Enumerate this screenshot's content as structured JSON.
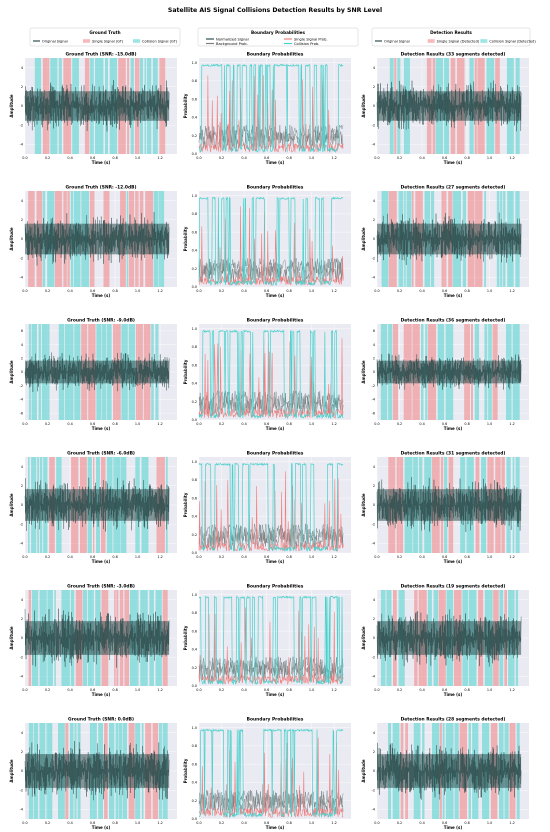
{
  "figure_title": "Satellite AIS Signal Collisions Detection Results by SNR Level",
  "legends": {
    "ground_truth": {
      "title": "Ground Truth",
      "entries": [
        "Original Signal",
        "Single Signal (GT)",
        "Collision Signal (GT)"
      ]
    },
    "boundary": {
      "title": "Boundary Probabilities",
      "entries": [
        "Normalized Signal",
        "Single Signal Prob.",
        "Background Prob.",
        "Collision Prob."
      ]
    },
    "detection": {
      "title": "Detection Results",
      "entries": [
        "Original Signal",
        "Single Signal (Detected)",
        "Collision Signal (Detected)"
      ]
    }
  },
  "colors": {
    "signal": "#2f4f4f",
    "single": "#f08080",
    "collision": "#48d1cc",
    "background_prob": "#808080",
    "panel_bg": "#eaeaf2"
  },
  "chart_data": [
    {
      "row": 0,
      "col": 0,
      "type": "line",
      "title": "Ground Truth (SNR: -15.0dB)",
      "xlabel": "Time (s)",
      "ylabel": "Amplitude",
      "xlim": [
        0,
        1.35
      ],
      "ylim": [
        -5,
        5
      ],
      "xticks": [
        "0.0",
        "0.2",
        "0.4",
        "0.6",
        "0.8",
        "1.0",
        "1.2"
      ],
      "yticks": [
        "-4",
        "-2",
        "0",
        "2",
        "4"
      ],
      "amplitude": 2.8
    },
    {
      "row": 0,
      "col": 1,
      "type": "line",
      "title": "Boundary Probabilities",
      "xlabel": "Time (s)",
      "ylabel": "Probability",
      "xlim": [
        0,
        1.35
      ],
      "ylim": [
        0,
        1.05
      ],
      "xticks": [
        "0.0",
        "0.2",
        "0.4",
        "0.6",
        "0.8",
        "1.0",
        "1.2"
      ],
      "yticks": [
        "0.0",
        "0.2",
        "0.4",
        "0.6",
        "0.8",
        "1.0"
      ]
    },
    {
      "row": 0,
      "col": 2,
      "type": "line",
      "title": "Detection Results (33 segments detected)",
      "xlabel": "Time (s)",
      "ylabel": "Amplitude",
      "xlim": [
        0,
        1.35
      ],
      "ylim": [
        -5,
        5
      ],
      "xticks": [
        "0.0",
        "0.2",
        "0.4",
        "0.6",
        "0.8",
        "1.0",
        "1.2"
      ],
      "yticks": [
        "-4",
        "-2",
        "0",
        "2",
        "4"
      ],
      "amplitude": 2.8
    },
    {
      "row": 1,
      "col": 0,
      "type": "line",
      "title": "Ground Truth (SNR: -12.0dB)",
      "xlabel": "Time (s)",
      "ylabel": "Amplitude",
      "xlim": [
        0,
        1.35
      ],
      "ylim": [
        -5,
        5
      ],
      "xticks": [
        "0.0",
        "0.2",
        "0.4",
        "0.6",
        "0.8",
        "1.0",
        "1.2"
      ],
      "yticks": [
        "-4",
        "-2",
        "0",
        "2",
        "4"
      ],
      "amplitude": 2.9
    },
    {
      "row": 1,
      "col": 1,
      "type": "line",
      "title": "Boundary Probabilities",
      "xlabel": "Time (s)",
      "ylabel": "Probability",
      "xlim": [
        0,
        1.35
      ],
      "ylim": [
        0,
        1.05
      ],
      "xticks": [
        "0.0",
        "0.2",
        "0.4",
        "0.6",
        "0.8",
        "1.0",
        "1.2"
      ],
      "yticks": [
        "0.0",
        "0.2",
        "0.4",
        "0.6",
        "0.8",
        "1.0"
      ]
    },
    {
      "row": 1,
      "col": 2,
      "type": "line",
      "title": "Detection Results (27 segments detected)",
      "xlabel": "Time (s)",
      "ylabel": "Amplitude",
      "xlim": [
        0,
        1.35
      ],
      "ylim": [
        -5,
        5
      ],
      "xticks": [
        "0.0",
        "0.2",
        "0.4",
        "0.6",
        "0.8",
        "1.0",
        "1.2"
      ],
      "yticks": [
        "-4",
        "-2",
        "0",
        "2",
        "4"
      ],
      "amplitude": 2.9
    },
    {
      "row": 2,
      "col": 0,
      "type": "line",
      "title": "Ground Truth (SNR: -9.0dB)",
      "xlabel": "Time (s)",
      "ylabel": "Amplitude",
      "xlim": [
        0,
        1.35
      ],
      "ylim": [
        -7,
        7
      ],
      "xticks": [
        "0.0",
        "0.2",
        "0.4",
        "0.6",
        "0.8",
        "1.0",
        "1.2"
      ],
      "yticks": [
        "-6",
        "-4",
        "-2",
        "0",
        "2",
        "4",
        "6"
      ],
      "amplitude": 3.0
    },
    {
      "row": 2,
      "col": 1,
      "type": "line",
      "title": "Boundary Probabilities",
      "xlabel": "Time (s)",
      "ylabel": "Probability",
      "xlim": [
        0,
        1.35
      ],
      "ylim": [
        0,
        1.05
      ],
      "xticks": [
        "0.0",
        "0.2",
        "0.4",
        "0.6",
        "0.8",
        "1.0",
        "1.2"
      ],
      "yticks": [
        "0.0",
        "0.2",
        "0.4",
        "0.6",
        "0.8",
        "1.0"
      ]
    },
    {
      "row": 2,
      "col": 2,
      "type": "line",
      "title": "Detection Results (36 segments detected)",
      "xlabel": "Time (s)",
      "ylabel": "Amplitude",
      "xlim": [
        0,
        1.35
      ],
      "ylim": [
        -7,
        7
      ],
      "xticks": [
        "0.0",
        "0.2",
        "0.4",
        "0.6",
        "0.8",
        "1.0",
        "1.2"
      ],
      "yticks": [
        "-6",
        "-4",
        "-2",
        "0",
        "2",
        "4",
        "6"
      ],
      "amplitude": 3.0
    },
    {
      "row": 3,
      "col": 0,
      "type": "line",
      "title": "Ground Truth (SNR: -6.0dB)",
      "xlabel": "Time (s)",
      "ylabel": "Amplitude",
      "xlim": [
        0,
        1.35
      ],
      "ylim": [
        -5,
        5
      ],
      "xticks": [
        "0.0",
        "0.2",
        "0.4",
        "0.6",
        "0.8",
        "1.0",
        "1.2"
      ],
      "yticks": [
        "-4",
        "-2",
        "0",
        "2",
        "4"
      ],
      "amplitude": 3.0
    },
    {
      "row": 3,
      "col": 1,
      "type": "line",
      "title": "Boundary Probabilities",
      "xlabel": "Time (s)",
      "ylabel": "Probability",
      "xlim": [
        0,
        1.35
      ],
      "ylim": [
        0,
        1.05
      ],
      "xticks": [
        "0.0",
        "0.2",
        "0.4",
        "0.6",
        "0.8",
        "1.0",
        "1.2"
      ],
      "yticks": [
        "0.0",
        "0.2",
        "0.4",
        "0.6",
        "0.8",
        "1.0"
      ]
    },
    {
      "row": 3,
      "col": 2,
      "type": "line",
      "title": "Detection Results (31 segments detected)",
      "xlabel": "Time (s)",
      "ylabel": "Amplitude",
      "xlim": [
        0,
        1.35
      ],
      "ylim": [
        -5,
        5
      ],
      "xticks": [
        "0.0",
        "0.2",
        "0.4",
        "0.6",
        "0.8",
        "1.0",
        "1.2"
      ],
      "yticks": [
        "-4",
        "-2",
        "0",
        "2",
        "4"
      ],
      "amplitude": 3.0
    },
    {
      "row": 4,
      "col": 0,
      "type": "line",
      "title": "Ground Truth (SNR: -3.0dB)",
      "xlabel": "Time (s)",
      "ylabel": "Amplitude",
      "xlim": [
        0,
        1.35
      ],
      "ylim": [
        -5,
        5
      ],
      "xticks": [
        "0.0",
        "0.2",
        "0.4",
        "0.6",
        "0.8",
        "1.0",
        "1.2"
      ],
      "yticks": [
        "-4",
        "-2",
        "0",
        "2",
        "4"
      ],
      "amplitude": 3.2
    },
    {
      "row": 4,
      "col": 1,
      "type": "line",
      "title": "Boundary Probabilities",
      "xlabel": "Time (s)",
      "ylabel": "Probability",
      "xlim": [
        0,
        1.35
      ],
      "ylim": [
        0,
        1.05
      ],
      "xticks": [
        "0.0",
        "0.2",
        "0.4",
        "0.6",
        "0.8",
        "1.0",
        "1.2"
      ],
      "yticks": [
        "0.0",
        "0.2",
        "0.4",
        "0.6",
        "0.8",
        "1.0"
      ]
    },
    {
      "row": 4,
      "col": 2,
      "type": "line",
      "title": "Detection Results (19 segments detected)",
      "xlabel": "Time (s)",
      "ylabel": "Amplitude",
      "xlim": [
        0,
        1.35
      ],
      "ylim": [
        -5,
        5
      ],
      "xticks": [
        "0.0",
        "0.2",
        "0.4",
        "0.6",
        "0.8",
        "1.0",
        "1.2"
      ],
      "yticks": [
        "-4",
        "-2",
        "0",
        "2",
        "4"
      ],
      "amplitude": 3.2
    },
    {
      "row": 5,
      "col": 0,
      "type": "line",
      "title": "Ground Truth (SNR: 0.0dB)",
      "xlabel": "Time (s)",
      "ylabel": "Amplitude",
      "xlim": [
        0,
        1.35
      ],
      "ylim": [
        -5,
        5
      ],
      "xticks": [
        "0.0",
        "0.2",
        "0.4",
        "0.6",
        "0.8",
        "1.0",
        "1.2"
      ],
      "yticks": [
        "-4",
        "-2",
        "0",
        "2",
        "4"
      ],
      "amplitude": 3.2
    },
    {
      "row": 5,
      "col": 1,
      "type": "line",
      "title": "Boundary Probabilities",
      "xlabel": "Time (s)",
      "ylabel": "Probability",
      "xlim": [
        0,
        1.35
      ],
      "ylim": [
        0,
        1.05
      ],
      "xticks": [
        "0.0",
        "0.2",
        "0.4",
        "0.6",
        "0.8",
        "1.0",
        "1.2"
      ],
      "yticks": [
        "0.0",
        "0.2",
        "0.4",
        "0.6",
        "0.8",
        "1.0"
      ]
    },
    {
      "row": 5,
      "col": 2,
      "type": "line",
      "title": "Detection Results (28 segments detected)",
      "xlabel": "Time (s)",
      "ylabel": "Amplitude",
      "xlim": [
        0,
        1.35
      ],
      "ylim": [
        -5,
        5
      ],
      "xticks": [
        "0.0",
        "0.2",
        "0.4",
        "0.6",
        "0.8",
        "1.0",
        "1.2"
      ],
      "yticks": [
        "-4",
        "-2",
        "0",
        "2",
        "4"
      ],
      "amplitude": 3.2
    }
  ]
}
